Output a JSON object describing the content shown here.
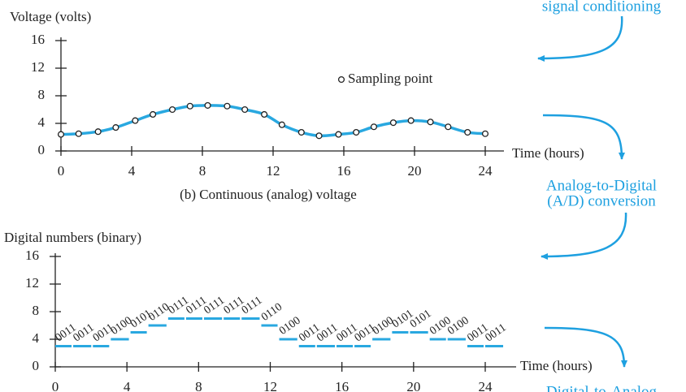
{
  "chart_data": [
    {
      "type": "line",
      "y_label": "Voltage (volts)",
      "x_label": "Time (hours)",
      "caption": "(b) Continuous (analog) voltage",
      "x": [
        0,
        1,
        2.1,
        3.1,
        4.2,
        5.2,
        6.3,
        7.3,
        8.3,
        9.4,
        10.4,
        11.5,
        12.5,
        13.6,
        14.6,
        15.7,
        16.7,
        17.7,
        18.8,
        19.8,
        20.9,
        21.9,
        23,
        24
      ],
      "series": [
        {
          "name": "Sampling point",
          "color": "#29a8e0",
          "values": [
            2.4,
            2.5,
            2.8,
            3.4,
            4.4,
            5.3,
            6,
            6.5,
            6.6,
            6.5,
            6,
            5.3,
            3.8,
            2.7,
            2.2,
            2.4,
            2.7,
            3.5,
            4.1,
            4.4,
            4.2,
            3.5,
            2.7,
            2.5
          ]
        }
      ],
      "xlim": [
        0,
        24
      ],
      "ylim": [
        0,
        16
      ],
      "xticks": [
        0,
        4,
        8,
        12,
        16,
        20,
        24
      ],
      "yticks": [
        0,
        4,
        8,
        12,
        16
      ]
    },
    {
      "type": "step",
      "y_label": "Digital numbers (binary)",
      "x_label": "Time (hours)",
      "color": "#29a8e0",
      "x": [
        0,
        1,
        2.1,
        3.1,
        4.2,
        5.2,
        6.3,
        7.3,
        8.3,
        9.4,
        10.4,
        11.5,
        12.5,
        13.6,
        14.6,
        15.7,
        16.7,
        17.7,
        18.8,
        19.8,
        20.9,
        21.9,
        23,
        24
      ],
      "values": [
        3,
        3,
        3,
        4,
        5,
        6,
        7,
        7,
        7,
        7,
        7,
        6,
        4,
        3,
        3,
        3,
        3,
        4,
        5,
        5,
        4,
        4,
        3,
        3
      ],
      "value_labels": [
        "0011",
        "0011",
        "0011",
        "0100",
        "0101",
        "0110",
        "0111",
        "0111",
        "0111",
        "0111",
        "0111",
        "0110",
        "0100",
        "0011",
        "0011",
        "0011",
        "0011",
        "0100",
        "0101",
        "0101",
        "0100",
        "0100",
        "0011",
        "0011"
      ],
      "xlim": [
        0,
        24
      ],
      "ylim": [
        0,
        16
      ],
      "xticks": [
        0,
        4,
        8,
        12,
        16,
        20,
        24
      ],
      "yticks": [
        0,
        4,
        8,
        12,
        16
      ]
    }
  ],
  "flow": {
    "top": "signal conditioning",
    "middle": [
      "Analog-to-Digital",
      "(A/D) conversion"
    ],
    "bottom": "Digital-to-Analog"
  }
}
